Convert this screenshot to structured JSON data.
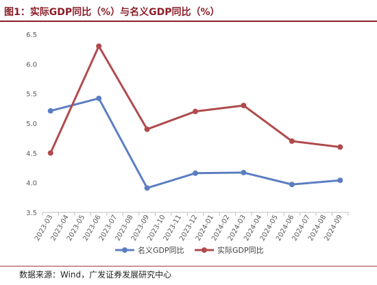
{
  "header": {
    "title": "图1：实际GDP同比（%）与名义GDP同比（%）"
  },
  "footer": {
    "source": "数据来源：Wind，广发证券发展研究中心"
  },
  "colors": {
    "nominal": "#5b7ec2",
    "real": "#b04a4c",
    "title": "#8b1e2a"
  },
  "chart_data": {
    "type": "line",
    "title": "",
    "xlabel": "",
    "ylabel": "",
    "ylim": [
      3.5,
      6.5
    ],
    "yticks": [
      "3.5",
      "4.0",
      "4.5",
      "5.0",
      "5.5",
      "6.0",
      "6.5"
    ],
    "categories": [
      "2023-03",
      "2023-04",
      "2023-05",
      "2023-06",
      "2023-07",
      "2023-08",
      "2023-09",
      "2023-10",
      "2023-11",
      "2023-12",
      "2024-01",
      "2024-02",
      "2024-03",
      "2024-04",
      "2024-05",
      "2024-06",
      "2024-07",
      "2024-08",
      "2024-09"
    ],
    "series": [
      {
        "name": "名义GDP同比",
        "color": "#5b7ec2",
        "values": [
          5.21,
          null,
          null,
          5.42,
          null,
          null,
          3.91,
          null,
          null,
          4.16,
          null,
          null,
          4.17,
          null,
          null,
          3.97,
          null,
          null,
          4.04
        ]
      },
      {
        "name": "实际GDP同比",
        "color": "#b04a4c",
        "values": [
          4.5,
          null,
          null,
          6.3,
          null,
          null,
          4.9,
          null,
          null,
          5.2,
          null,
          null,
          5.3,
          null,
          null,
          4.7,
          null,
          null,
          4.6
        ]
      }
    ],
    "grid": false,
    "legend": "bottom"
  }
}
